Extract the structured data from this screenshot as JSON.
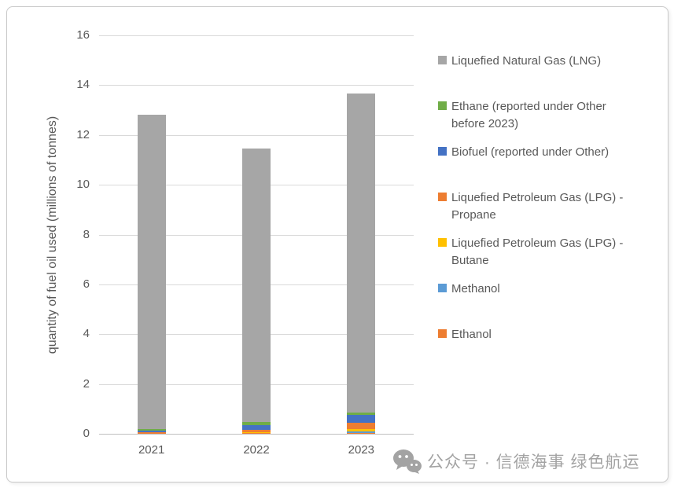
{
  "chart_data": {
    "type": "bar",
    "stacked": true,
    "title": "",
    "xlabel": "",
    "ylabel": "quantity of fuel oil used (millions of tonnes)",
    "ylim": [
      0,
      16
    ],
    "ytick_step": 2,
    "grid": true,
    "legend_position": "right",
    "categories": [
      "2021",
      "2022",
      "2023"
    ],
    "series_note": "series listed bottom-to-top of stack; legend shows reverse order",
    "series": [
      {
        "name": "Ethanol",
        "color": "#ED7D31",
        "values": [
          0.03,
          0.04,
          0.02
        ]
      },
      {
        "name": "Methanol",
        "color": "#5B9BD5",
        "values": [
          0.0,
          0.0,
          0.06
        ]
      },
      {
        "name": "Liquefied Petroleum Gas (LPG) - Butane",
        "color": "#FFC000",
        "values": [
          0.0,
          0.03,
          0.12
        ]
      },
      {
        "name": "Liquefied Petroleum Gas (LPG) - Propane",
        "color": "#ED7D31",
        "values": [
          0.04,
          0.09,
          0.25
        ]
      },
      {
        "name": "Biofuel (reported under Other)",
        "color": "#4472C4",
        "values": [
          0.06,
          0.2,
          0.31
        ]
      },
      {
        "name": "Ethane (reported under Other before 2023)",
        "color": "#70AD47",
        "values": [
          0.06,
          0.1,
          0.09
        ]
      },
      {
        "name": "Liquefied Natural Gas (LNG)",
        "color": "#A6A6A6",
        "values": [
          12.61,
          10.99,
          12.8
        ]
      }
    ],
    "bar_totals": [
      12.8,
      11.45,
      13.65
    ]
  },
  "watermark": {
    "text": "公众号 · 信德海事 绿色航运",
    "icon": "wechat-icon",
    "color": "#a3a3a3"
  }
}
